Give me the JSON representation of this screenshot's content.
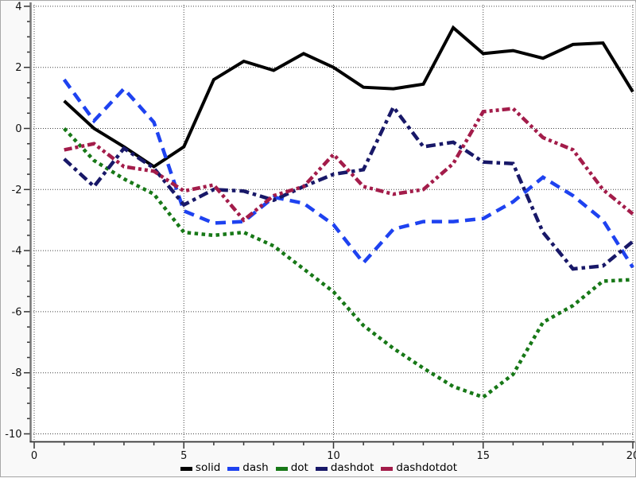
{
  "chart_data": {
    "type": "line",
    "title": "",
    "xlabel": "",
    "ylabel": "",
    "xlim": [
      0,
      20
    ],
    "ylim": [
      -10,
      4
    ],
    "grid": "dotted",
    "grid_color": "#444444",
    "axis_color": "#333333",
    "spine_color": "#777777",
    "plot_background": "#ffffff",
    "outer_background": "#f9f9f9",
    "x_major_ticks": [
      0,
      5,
      10,
      15,
      20
    ],
    "x_tick_labels": [
      "0",
      "5",
      "10",
      "15",
      "20"
    ],
    "x_minor_step": 1,
    "y_major_ticks": [
      4,
      2,
      0,
      -2,
      -4,
      -6,
      -8,
      -10
    ],
    "y_tick_labels": [
      "4",
      "2",
      "0",
      "-2",
      "-4",
      "-6",
      "-8",
      "-10"
    ],
    "y_minor_step": 0.5,
    "legend_position": "bottom-center",
    "x": [
      1,
      2,
      3,
      4,
      5,
      6,
      7,
      8,
      9,
      10,
      11,
      12,
      13,
      14,
      15,
      16,
      17,
      18,
      19,
      20
    ],
    "series": [
      {
        "name": "solid",
        "color": "#000000",
        "line_style": "solid",
        "values": [
          0.9,
          0.0,
          -0.6,
          -1.25,
          -0.6,
          1.6,
          2.2,
          1.9,
          2.45,
          2.0,
          1.35,
          1.3,
          1.45,
          3.3,
          2.45,
          2.55,
          2.3,
          2.75,
          2.8,
          1.2
        ]
      },
      {
        "name": "dash",
        "color": "#1e42f0",
        "line_style": "dash",
        "values": [
          1.6,
          0.25,
          1.3,
          0.2,
          -2.7,
          -3.1,
          -3.05,
          -2.25,
          -2.45,
          -3.15,
          -4.4,
          -3.3,
          -3.05,
          -3.05,
          -2.95,
          -2.4,
          -1.6,
          -2.2,
          -3.0,
          -4.55
        ]
      },
      {
        "name": "dot",
        "color": "#177817",
        "line_style": "dot",
        "values": [
          0.0,
          -1.05,
          -1.65,
          -2.15,
          -3.4,
          -3.5,
          -3.4,
          -3.85,
          -4.6,
          -5.35,
          -6.45,
          -7.2,
          -7.85,
          -8.45,
          -8.8,
          -8.05,
          -6.35,
          -5.8,
          -5.0,
          -4.95
        ]
      },
      {
        "name": "dashdot",
        "color": "#181868",
        "line_style": "dashdot",
        "values": [
          -1.0,
          -1.9,
          -0.65,
          -1.3,
          -2.5,
          -2.0,
          -2.05,
          -2.35,
          -1.9,
          -1.5,
          -1.35,
          0.7,
          -0.6,
          -0.45,
          -1.1,
          -1.15,
          -3.4,
          -4.6,
          -4.5,
          -3.7
        ]
      },
      {
        "name": "dashdotdot",
        "color": "#a31c4a",
        "line_style": "dashdotdot",
        "values": [
          -0.7,
          -0.5,
          -1.25,
          -1.4,
          -2.05,
          -1.85,
          -3.0,
          -2.2,
          -1.9,
          -0.85,
          -1.9,
          -2.15,
          -2.0,
          -1.15,
          0.55,
          0.65,
          -0.3,
          -0.7,
          -2.0,
          -2.8
        ]
      }
    ],
    "legend": [
      {
        "label": "solid",
        "color": "#000000"
      },
      {
        "label": "dash",
        "color": "#1e42f0"
      },
      {
        "label": "dot",
        "color": "#177817"
      },
      {
        "label": "dashdot",
        "color": "#181868"
      },
      {
        "label": "dashdotdot",
        "color": "#a31c4a"
      }
    ]
  }
}
